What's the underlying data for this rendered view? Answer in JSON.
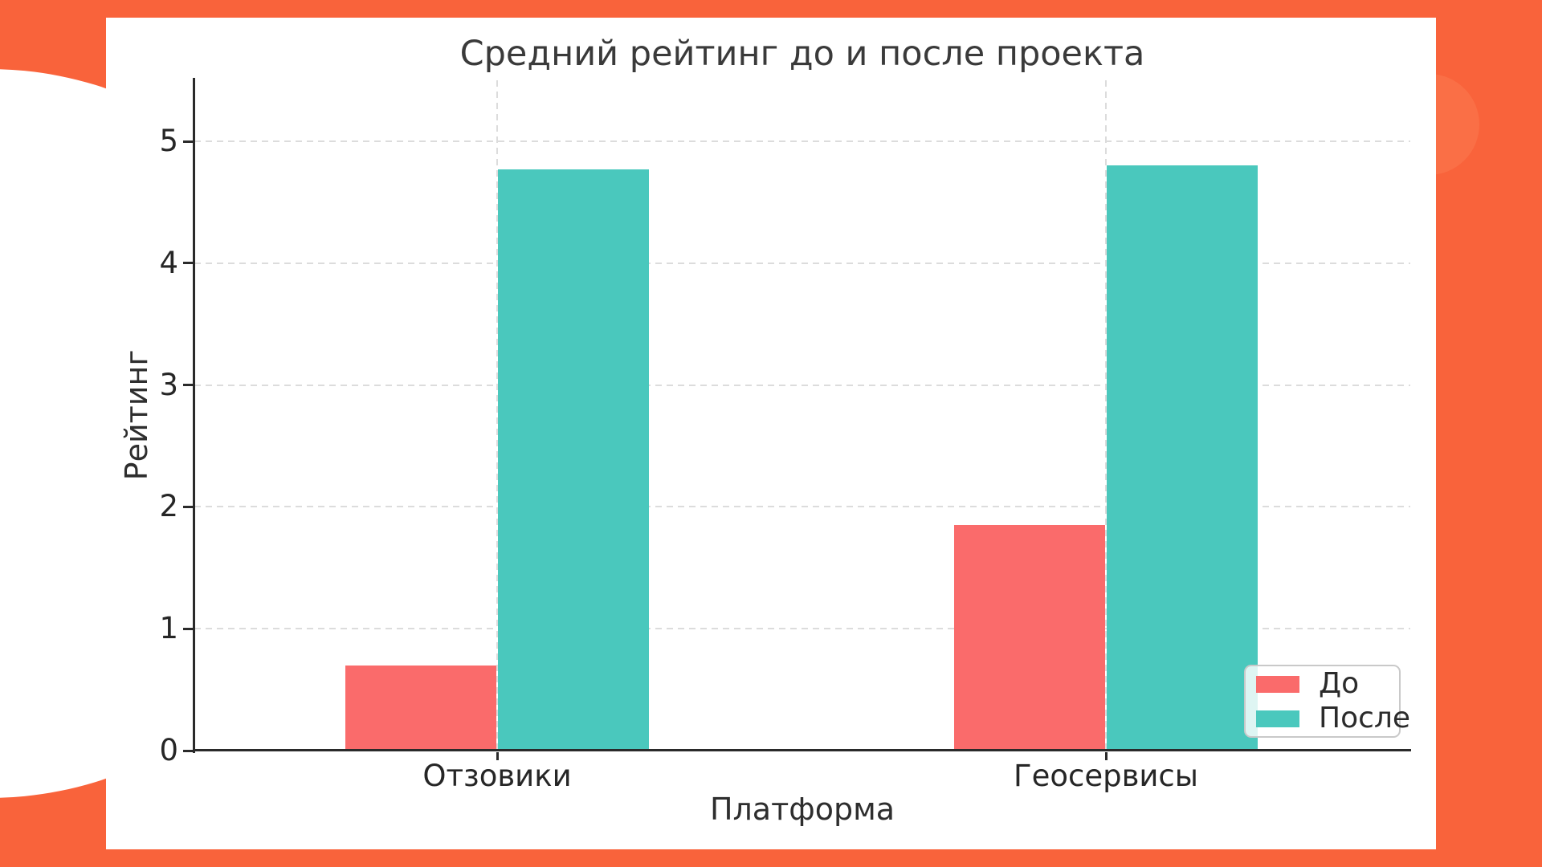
{
  "frame": {
    "background_color": "#F9633B",
    "card_color": "#FFFFFF",
    "decor_circle_right_color": "#FB7B51"
  },
  "chart_data": {
    "type": "bar",
    "title": "Средний рейтинг до и после проекта",
    "xlabel": "Платформа",
    "ylabel": "Рейтинг",
    "categories": [
      "Отзовики",
      "Геосервисы"
    ],
    "series": [
      {
        "name": "До",
        "color": "#FA6B6B",
        "values": [
          0.7,
          1.85
        ]
      },
      {
        "name": "После",
        "color": "#4AC8BD",
        "values": [
          4.77,
          4.8
        ]
      }
    ],
    "ylim": [
      0,
      5.5
    ],
    "yticks": [
      0,
      1,
      2,
      3,
      4,
      5
    ],
    "grid": "dashed, horizontal and vertical",
    "grid_color": "#DCDCDC",
    "spine_color": "#2A2A2A",
    "text_color": "#2E2E2E",
    "legend_position": "lower right",
    "legend_border_color": "#C9C9C9"
  }
}
